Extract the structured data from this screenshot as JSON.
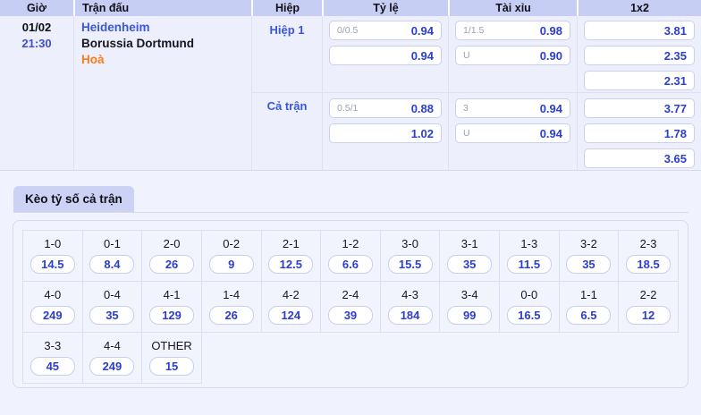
{
  "odds_table": {
    "headers": [
      "Giờ",
      "Trận đấu",
      "Hiệp",
      "Tỷ lệ",
      "Tài xỉu",
      "1x2"
    ],
    "match": {
      "date": "01/02",
      "time": "21:30",
      "home": "Heidenheim",
      "away": "Borussia Dortmund",
      "result": "Hoà"
    },
    "periods": [
      {
        "label": "Hiệp 1",
        "handicap": [
          {
            "line": "0/0.5",
            "odds": "0.94"
          },
          {
            "line": "",
            "odds": "0.94"
          }
        ],
        "over_under": [
          {
            "line": "1/1.5",
            "odds": "0.98"
          },
          {
            "line": "U",
            "odds": "0.90"
          }
        ],
        "one_x_two": [
          "3.81",
          "2.35",
          "2.31"
        ]
      },
      {
        "label": "Cả trận",
        "handicap": [
          {
            "line": "0.5/1",
            "odds": "0.88"
          },
          {
            "line": "",
            "odds": "1.02"
          }
        ],
        "over_under": [
          {
            "line": "3",
            "odds": "0.94"
          },
          {
            "line": "U",
            "odds": "0.94"
          }
        ],
        "one_x_two": [
          "3.77",
          "1.78",
          "3.65"
        ]
      }
    ]
  },
  "score_section": {
    "title": "Kèo tỷ số cả trận",
    "rows": [
      [
        {
          "score": "1-0",
          "odds": "14.5"
        },
        {
          "score": "0-1",
          "odds": "8.4"
        },
        {
          "score": "2-0",
          "odds": "26"
        },
        {
          "score": "0-2",
          "odds": "9"
        },
        {
          "score": "2-1",
          "odds": "12.5"
        },
        {
          "score": "1-2",
          "odds": "6.6"
        },
        {
          "score": "3-0",
          "odds": "15.5"
        },
        {
          "score": "3-1",
          "odds": "35"
        },
        {
          "score": "1-3",
          "odds": "11.5"
        },
        {
          "score": "3-2",
          "odds": "35"
        },
        {
          "score": "2-3",
          "odds": "18.5"
        }
      ],
      [
        {
          "score": "4-0",
          "odds": "249"
        },
        {
          "score": "0-4",
          "odds": "35"
        },
        {
          "score": "4-1",
          "odds": "129"
        },
        {
          "score": "1-4",
          "odds": "26"
        },
        {
          "score": "4-2",
          "odds": "124"
        },
        {
          "score": "2-4",
          "odds": "39"
        },
        {
          "score": "4-3",
          "odds": "184"
        },
        {
          "score": "3-4",
          "odds": "99"
        },
        {
          "score": "0-0",
          "odds": "16.5"
        },
        {
          "score": "1-1",
          "odds": "6.5"
        },
        {
          "score": "2-2",
          "odds": "12"
        }
      ],
      [
        {
          "score": "3-3",
          "odds": "45"
        },
        {
          "score": "4-4",
          "odds": "249"
        },
        {
          "score": "OTHER",
          "odds": "15"
        }
      ]
    ]
  },
  "colors": {
    "header_bg": "#c7cef3",
    "accent_blue": "#2c3ecf",
    "team_blue": "#3a56da",
    "result_orange": "#fb7b17",
    "page_bg": "#f0f3fd"
  }
}
